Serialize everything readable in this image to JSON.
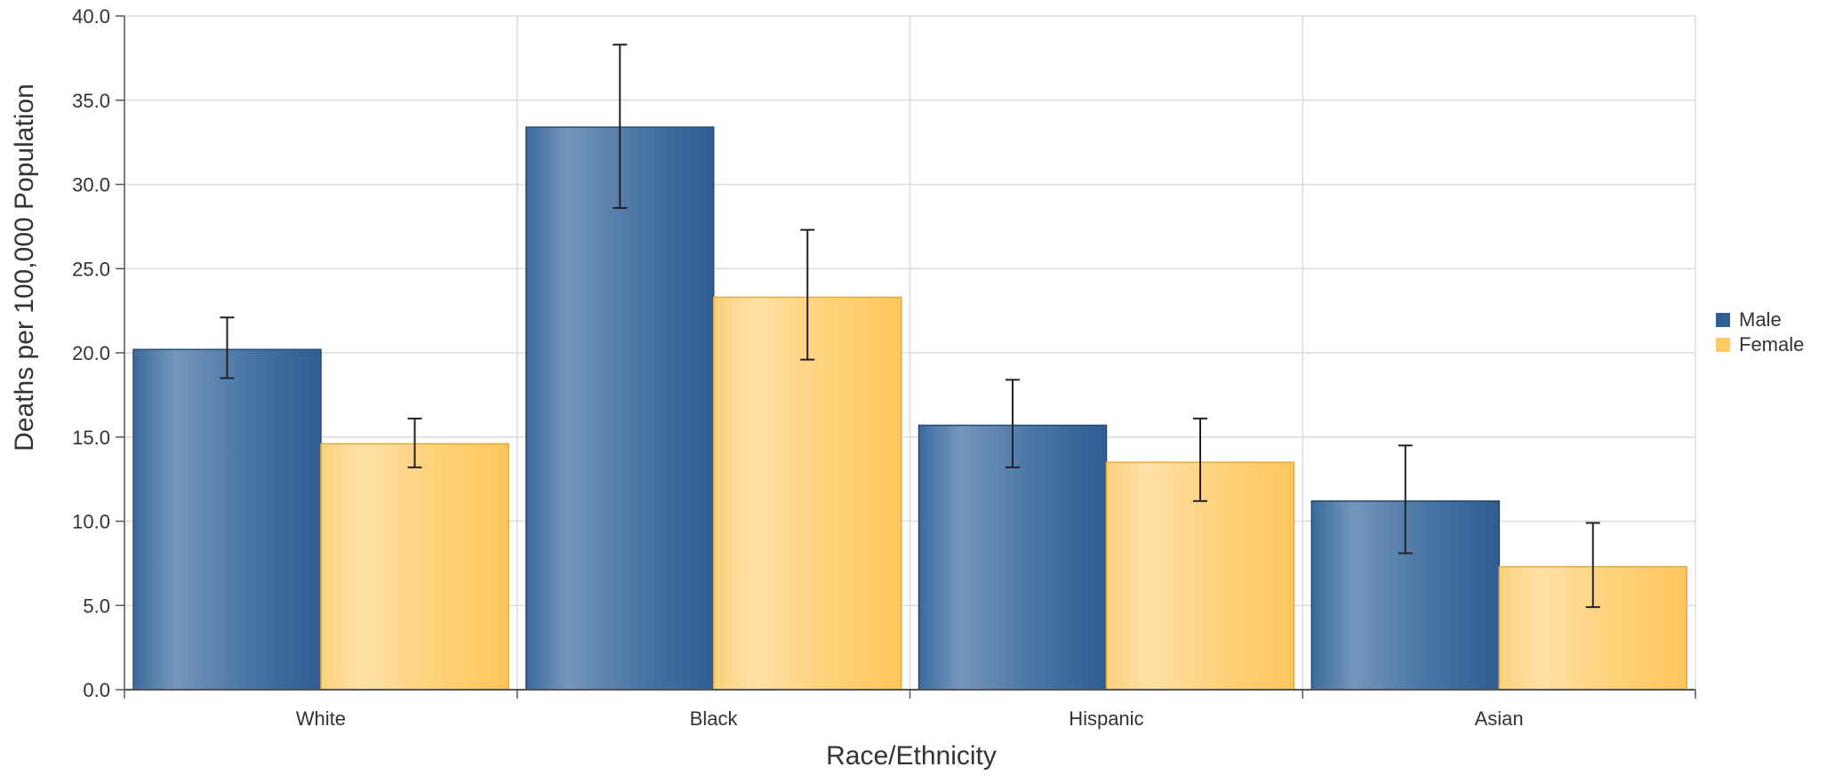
{
  "chart_data": {
    "type": "bar",
    "title": "",
    "xlabel": "Race/Ethnicity",
    "ylabel": "Deaths per 100,000 Population",
    "ylim": [
      0,
      40
    ],
    "yticks": [
      "0.0",
      "5.0",
      "10.0",
      "15.0",
      "20.0",
      "25.0",
      "30.0",
      "35.0",
      "40.0"
    ],
    "categories": [
      "White",
      "Black",
      "Hispanic",
      "Asian"
    ],
    "grid": true,
    "legend_position": "right",
    "series": [
      {
        "name": "Male",
        "color": "#2f5f93",
        "values": [
          20.2,
          33.4,
          15.7,
          11.2
        ],
        "error_low": [
          18.5,
          28.6,
          13.2,
          8.1
        ],
        "error_high": [
          22.1,
          38.3,
          18.4,
          14.5
        ]
      },
      {
        "name": "Female",
        "color": "#ffca5f",
        "values": [
          14.6,
          23.3,
          13.5,
          7.3
        ],
        "error_low": [
          13.2,
          19.6,
          11.2,
          4.9
        ],
        "error_high": [
          16.1,
          27.3,
          16.1,
          9.9
        ]
      }
    ]
  }
}
